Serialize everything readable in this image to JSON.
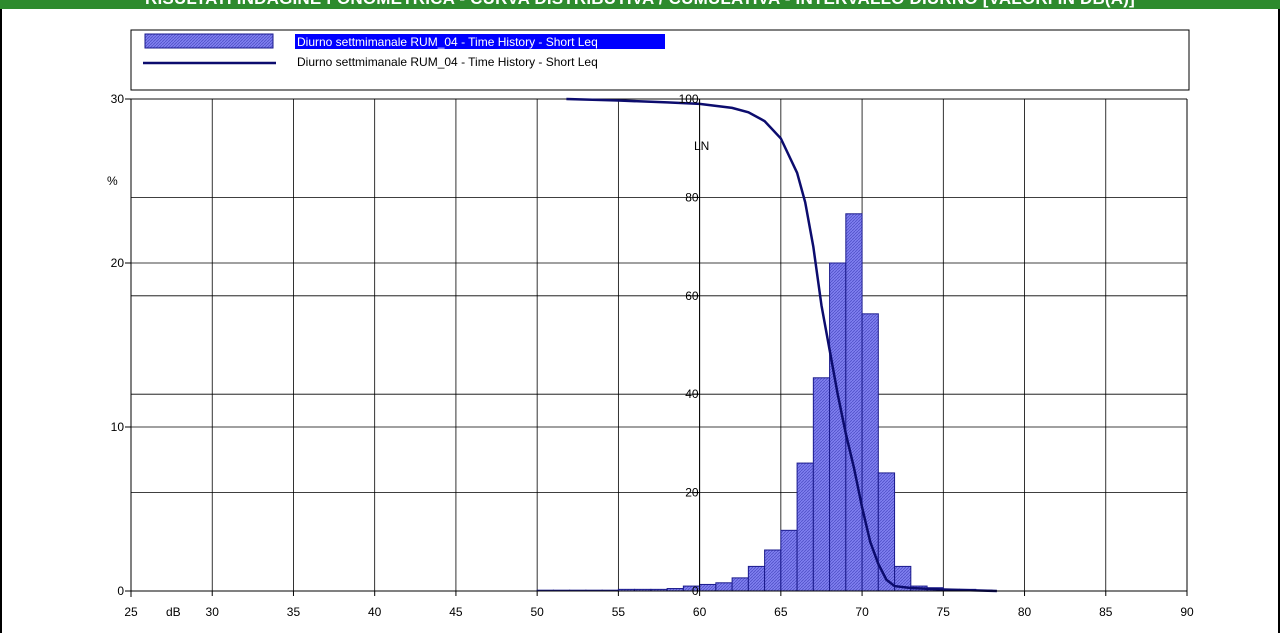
{
  "header": {
    "title": "RISULTATI INDAGINE FONOMETRICA - CURVA DISTRIBUTIVA / CUMULATIVA - INTERVALLO DIURNO [VALORI IN DB(A)]"
  },
  "colors": {
    "title_bar": "#2e8b2e",
    "bar_fill": "#8080f0",
    "bar_stroke": "#1a1a8c",
    "line": "#0c0c6e",
    "legend_highlight": "#0000ff"
  },
  "chart_data": {
    "type": "bar",
    "x_unit": "dB",
    "y_left_unit": "%",
    "y_right_label": "LN",
    "xlim": [
      25,
      90
    ],
    "ylim": [
      0,
      30
    ],
    "y_right_lim": [
      0,
      100
    ],
    "x_ticks": [
      25,
      30,
      35,
      40,
      45,
      50,
      55,
      60,
      65,
      70,
      75,
      80,
      85,
      90
    ],
    "y_ticks": [
      0,
      10,
      20,
      30
    ],
    "y_right_ticks": [
      0,
      20,
      40,
      60,
      80,
      100
    ],
    "grid": true,
    "legend_position": "top",
    "series": [
      {
        "name": "Diurno settmimanale RUM_04 - Time History - Short Leq",
        "type": "bar",
        "bin_width": 1,
        "x": [
          50,
          51,
          52,
          53,
          54,
          55,
          56,
          57,
          58,
          59,
          60,
          61,
          62,
          63,
          64,
          65,
          66,
          67,
          68,
          69,
          70,
          71,
          72,
          73,
          74,
          75,
          76,
          77
        ],
        "values": [
          0.05,
          0.05,
          0.05,
          0.05,
          0.05,
          0.1,
          0.1,
          0.1,
          0.15,
          0.3,
          0.4,
          0.5,
          0.8,
          1.5,
          2.5,
          3.7,
          7.8,
          13.0,
          20.0,
          23.0,
          16.9,
          7.2,
          1.5,
          0.3,
          0.2,
          0.1,
          0.1,
          0.05
        ]
      },
      {
        "name": "Diurno settmimanale RUM_04 - Time History - Short Leq",
        "type": "line",
        "axis": "right",
        "x": [
          51.8,
          55,
          58,
          60,
          62,
          63,
          64,
          65,
          66,
          66.5,
          67,
          67.5,
          68,
          68.5,
          69,
          69.5,
          70,
          70.5,
          71,
          71.5,
          72,
          73,
          75,
          78.3
        ],
        "values": [
          100,
          99.7,
          99.3,
          99.0,
          98.2,
          97.3,
          95.5,
          92.0,
          85.0,
          79.0,
          70.0,
          58.0,
          49.0,
          40.0,
          32.0,
          25.0,
          17.0,
          10.0,
          5.5,
          2.3,
          1.0,
          0.6,
          0.3,
          0
        ]
      }
    ]
  }
}
